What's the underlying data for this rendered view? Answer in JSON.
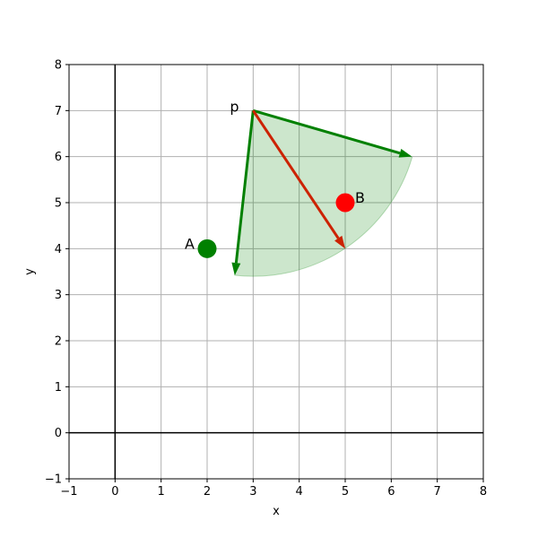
{
  "chart_data": {
    "type": "scatter",
    "title": "",
    "xlabel": "x",
    "ylabel": "y",
    "xlim": [
      -1,
      8
    ],
    "ylim": [
      -1,
      8
    ],
    "xticks": [
      -1,
      0,
      1,
      2,
      3,
      4,
      5,
      6,
      7,
      8
    ],
    "yticks": [
      -1,
      0,
      1,
      2,
      3,
      4,
      5,
      6,
      7,
      8
    ],
    "xtick_labels": [
      "−1",
      "0",
      "1",
      "2",
      "3",
      "4",
      "5",
      "6",
      "7",
      "8"
    ],
    "ytick_labels": [
      "−1",
      "0",
      "1",
      "2",
      "3",
      "4",
      "5",
      "6",
      "7",
      "8"
    ],
    "grid": true,
    "points": [
      {
        "label": "A",
        "x": 2,
        "y": 4,
        "color": "#008000"
      },
      {
        "label": "B",
        "x": 5,
        "y": 5,
        "color": "#ff0000"
      }
    ],
    "origin": {
      "label": "p",
      "x": 3,
      "y": 7
    },
    "sector": {
      "center": [
        3,
        7
      ],
      "radius": 3.6,
      "start_angle_deg": -96.3,
      "end_angle_deg": -16.3,
      "fill": "#008000",
      "fill_opacity": 0.2
    },
    "vectors": [
      {
        "from": [
          3,
          7
        ],
        "to": [
          6.45,
          6.0
        ],
        "color": "#008000"
      },
      {
        "from": [
          3,
          7
        ],
        "to": [
          2.6,
          3.42
        ],
        "color": "#008000"
      },
      {
        "from": [
          3,
          7
        ],
        "to": [
          5,
          4
        ],
        "color": "#cc2200"
      }
    ]
  }
}
